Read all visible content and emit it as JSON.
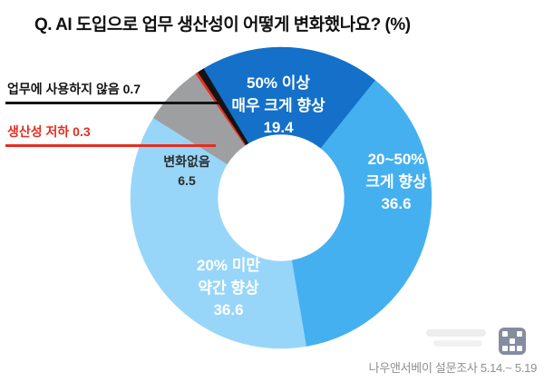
{
  "header": {
    "title": "Q. AI 도입으로 업무 생산성이 어떻게 변화했나요? (%)"
  },
  "footer": {
    "source": "나우앤서베이 설문조사 5.14.~ 5.19"
  },
  "chart_data": {
    "type": "pie",
    "style": "donut",
    "unit": "%",
    "title": "Q. AI 도입으로 업무 생산성이 어떻게 변화했나요? (%)",
    "start_angle_deg": -31,
    "segments": [
      {
        "name": "50% 이상 매우 크게 향상",
        "value": 19.4,
        "color": "#1470c8",
        "label": "50% 이상\n매우 크게 향상\n19.4"
      },
      {
        "name": "20~50% 크게 향상",
        "value": 36.6,
        "color": "#45b0f0",
        "label": "20~50%\n크게 향상\n36.6"
      },
      {
        "name": "20% 미만 약간 향상",
        "value": 36.6,
        "color": "#97d6f9",
        "label": "20% 미만\n약간 향상\n36.6"
      },
      {
        "name": "변화없음",
        "value": 6.5,
        "color": "#9e9fa1",
        "label": "변화없음\n6.5"
      },
      {
        "name": "생산성 저하",
        "value": 0.3,
        "color": "#e52e1f",
        "label": "생산성 저하 0.3"
      },
      {
        "name": "업무에 사용하지 않음",
        "value": 0.7,
        "color": "#141414",
        "label": "업무에 사용하지 않음 0.7"
      }
    ]
  }
}
